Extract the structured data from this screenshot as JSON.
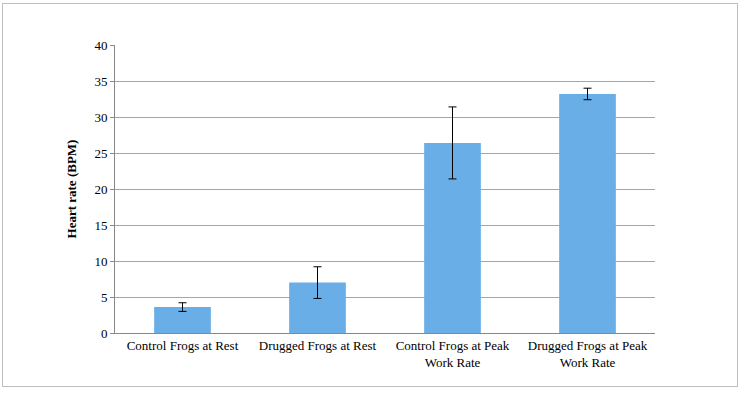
{
  "chart_data": {
    "type": "bar",
    "y_label": "Heart rate (BPM)",
    "categories": [
      "Control Frogs at Rest",
      "Drugged Frogs at Rest",
      "Control Frogs at Peak Work Rate",
      "Drugged Frogs at Peak Work Rate"
    ],
    "values": [
      3.6,
      7.0,
      26.4,
      33.2
    ],
    "errors": [
      0.6,
      2.2,
      5.0,
      0.8
    ],
    "color": "#6aaee8",
    "ylim": [
      0,
      40
    ],
    "yticks": [
      0,
      5,
      10,
      15,
      20,
      25,
      30,
      35,
      40
    ],
    "grid": true
  }
}
